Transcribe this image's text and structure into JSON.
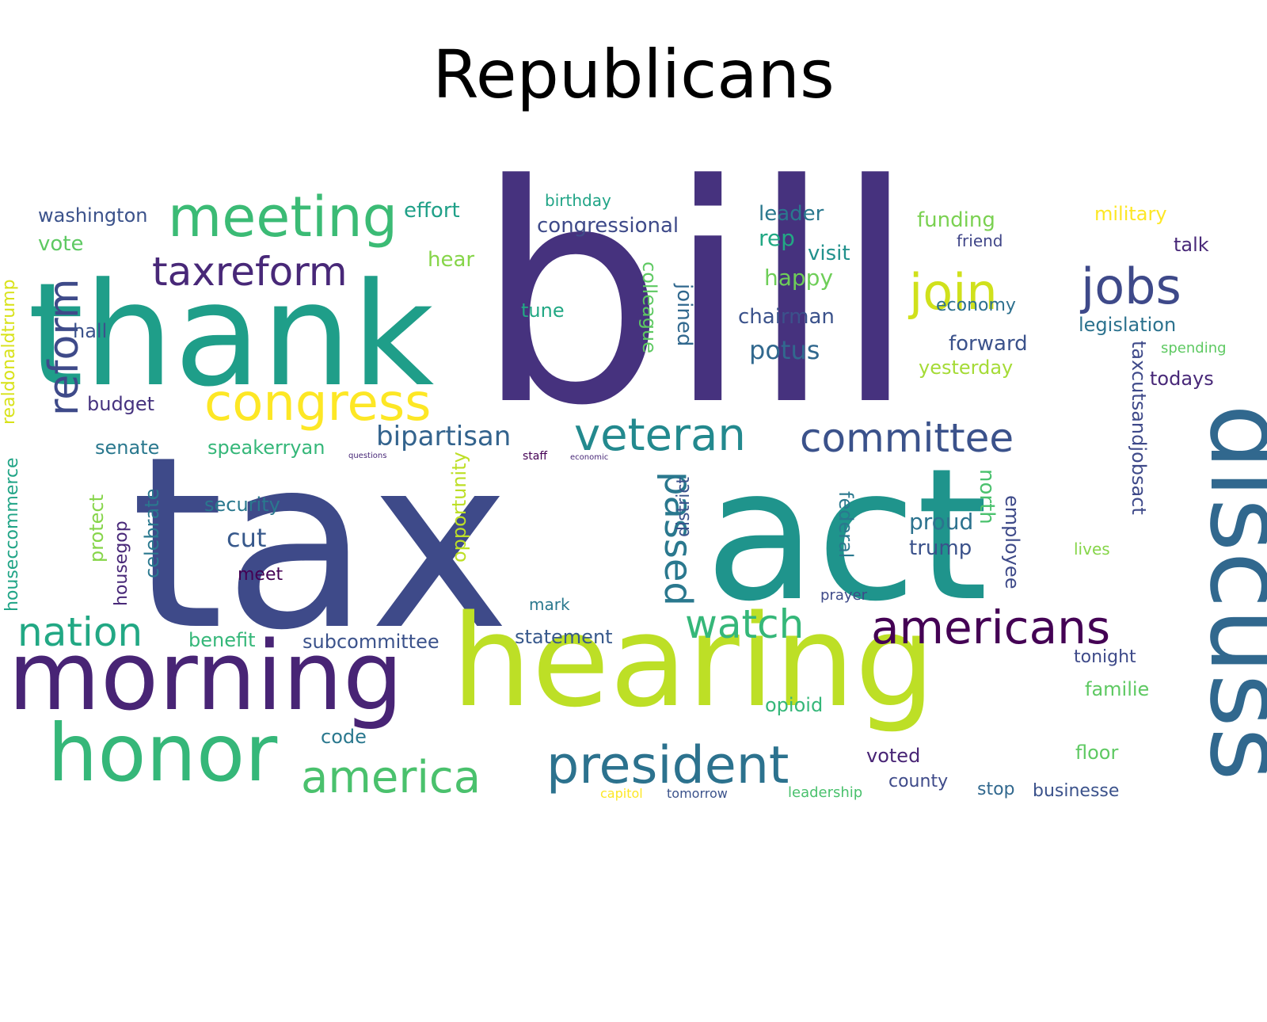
{
  "title": "Republicans",
  "words": [
    {
      "text": "bill",
      "color": "#46327e"
    },
    {
      "text": "tax",
      "color": "#3e4a89"
    },
    {
      "text": "act",
      "color": "#1f948c"
    },
    {
      "text": "thank",
      "color": "#1f9e89"
    },
    {
      "text": "hearing",
      "color": "#bddf26"
    },
    {
      "text": "morning",
      "color": "#482475"
    },
    {
      "text": "discuss",
      "color": "#31688e"
    },
    {
      "text": "honor",
      "color": "#35b779"
    },
    {
      "text": "meeting",
      "color": "#3bbb75"
    },
    {
      "text": "president",
      "color": "#2c728e"
    },
    {
      "text": "congress",
      "color": "#fde725"
    },
    {
      "text": "veteran",
      "color": "#23898e"
    },
    {
      "text": "americans",
      "color": "#440154"
    },
    {
      "text": "committee",
      "color": "#3b528b"
    },
    {
      "text": "taxreform",
      "color": "#482878"
    },
    {
      "text": "jobs",
      "color": "#3e4989"
    },
    {
      "text": "join",
      "color": "#d0e11c"
    },
    {
      "text": "america",
      "color": "#4ac16d"
    },
    {
      "text": "reform",
      "color": "#3e4a89"
    },
    {
      "text": "nation",
      "color": "#22a884"
    },
    {
      "text": "watch",
      "color": "#35b779"
    },
    {
      "text": "passed",
      "color": "#2a788e"
    },
    {
      "text": "bipartisan",
      "color": "#33638d"
    },
    {
      "text": "washington",
      "color": "#3b528b"
    },
    {
      "text": "effort",
      "color": "#1fa088"
    },
    {
      "text": "congressional",
      "color": "#3e4a89"
    },
    {
      "text": "leader",
      "color": "#2a788e"
    },
    {
      "text": "funding",
      "color": "#7ad151"
    },
    {
      "text": "military",
      "color": "#fde725"
    },
    {
      "text": "birthday",
      "color": "#20a486"
    },
    {
      "text": "vote",
      "color": "#5ec962"
    },
    {
      "text": "hear",
      "color": "#86d549"
    },
    {
      "text": "rep",
      "color": "#22a884"
    },
    {
      "text": "visit",
      "color": "#21918c"
    },
    {
      "text": "friend",
      "color": "#404688"
    },
    {
      "text": "talk",
      "color": "#482878"
    },
    {
      "text": "happy",
      "color": "#6ece58"
    },
    {
      "text": "economy",
      "color": "#2d708e"
    },
    {
      "text": "chairman",
      "color": "#3b528b"
    },
    {
      "text": "tune",
      "color": "#22a884"
    },
    {
      "text": "hall",
      "color": "#3b528b"
    },
    {
      "text": "colleague",
      "color": "#5ec962"
    },
    {
      "text": "joined",
      "color": "#31688e"
    },
    {
      "text": "potus",
      "color": "#31688e"
    },
    {
      "text": "legislation",
      "color": "#2c728e"
    },
    {
      "text": "forward",
      "color": "#3b528b"
    },
    {
      "text": "spending",
      "color": "#5ec962"
    },
    {
      "text": "yesterday",
      "color": "#a5db36"
    },
    {
      "text": "todays",
      "color": "#482878"
    },
    {
      "text": "budget",
      "color": "#46337f"
    },
    {
      "text": "senate",
      "color": "#2a788e"
    },
    {
      "text": "speakerryan",
      "color": "#35b779"
    },
    {
      "text": "security",
      "color": "#2a788e"
    },
    {
      "text": "cut",
      "color": "#38598c"
    },
    {
      "text": "meet",
      "color": "#440154"
    },
    {
      "text": "benefit",
      "color": "#35b779"
    },
    {
      "text": "subcommittee",
      "color": "#3b528b"
    },
    {
      "text": "statement",
      "color": "#38598c"
    },
    {
      "text": "proud",
      "color": "#2c728e"
    },
    {
      "text": "trump",
      "color": "#3b528b"
    },
    {
      "text": "federal",
      "color": "#2a788e"
    },
    {
      "text": "employee",
      "color": "#3e4a89"
    },
    {
      "text": "north",
      "color": "#4ac16d"
    },
    {
      "text": "taxcutsandjobsact",
      "color": "#3e4989"
    },
    {
      "text": "lives",
      "color": "#86d549"
    },
    {
      "text": "tonight",
      "color": "#3e4a89"
    },
    {
      "text": "familie",
      "color": "#5ec962"
    },
    {
      "text": "opioid",
      "color": "#35b779"
    },
    {
      "text": "code",
      "color": "#2a788e"
    },
    {
      "text": "voted",
      "color": "#482475"
    },
    {
      "text": "floor",
      "color": "#5ec962"
    },
    {
      "text": "county",
      "color": "#3e4a89"
    },
    {
      "text": "stop",
      "color": "#31688e"
    },
    {
      "text": "businesse",
      "color": "#3b528b"
    },
    {
      "text": "capitol",
      "color": "#fde725"
    },
    {
      "text": "tomorrow",
      "color": "#3b528b"
    },
    {
      "text": "leadership",
      "color": "#4ac16d"
    },
    {
      "text": "mark",
      "color": "#2a788e"
    },
    {
      "text": "prayer",
      "color": "#3e4a89"
    },
    {
      "text": "houseccommerce",
      "color": "#20a486"
    },
    {
      "text": "realdonaldtrump",
      "color": "#d8e219"
    },
    {
      "text": "celebrate",
      "color": "#2a788e"
    },
    {
      "text": "protect",
      "color": "#86d549"
    },
    {
      "text": "housegop",
      "color": "#482878"
    },
    {
      "text": "opportunity",
      "color": "#bddf26"
    },
    {
      "text": "district",
      "color": "#3b528b"
    },
    {
      "text": "economic",
      "color": "#482878"
    },
    {
      "text": "staff",
      "color": "#440154"
    },
    {
      "text": "questions",
      "color": "#482878"
    }
  ]
}
